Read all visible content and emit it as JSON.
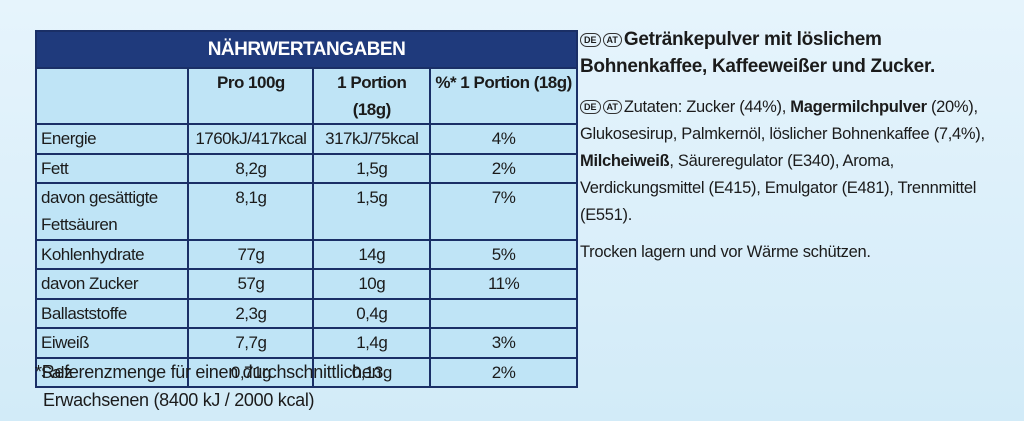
{
  "table": {
    "title": "NÄHRWERTANGABEN",
    "columns": [
      "Pro 100g",
      "1 Portion (18g)",
      "%* 1 Portion (18g)"
    ],
    "rows": [
      [
        "Energie",
        "1760kJ/417kcal",
        "317kJ/75kcal",
        "4%"
      ],
      [
        "Fett",
        "8,2g",
        "1,5g",
        "2%"
      ],
      [
        "davon gesättigte Fettsäuren",
        "8,1g",
        "1,5g",
        "7%"
      ],
      [
        "Kohlenhydrate",
        "77g",
        "14g",
        "5%"
      ],
      [
        "davon Zucker",
        "57g",
        "10g",
        "11%"
      ],
      [
        "Ballaststoffe",
        "2,3g",
        "0,4g"
      ],
      [
        "Eiweiß",
        "7,7g",
        "1,4g",
        "3%"
      ],
      [
        "Salz",
        "0,71g",
        "0,13g",
        "2%"
      ]
    ]
  },
  "footnote": [
    "*Referenzmenge für einen durchschnittlichen",
    "Erwachsenen (8400 kJ / 2000 kcal)"
  ],
  "countries": [
    "DE",
    "AT"
  ],
  "description": "Getränkepulver mit löslichem Bohnenkaffee, Kaffeeweißer und Zucker.",
  "ingredients": [
    {
      "text": "Zutaten: Zucker (44%), ",
      "bold": false
    },
    {
      "text": "Magermilchpulver",
      "bold": true
    },
    {
      "text": " (20%), Glukosesirup, Palmkernöl, löslicher Bohnenkaffee (7,4%), ",
      "bold": false
    },
    {
      "text": "Milcheiweiß",
      "bold": true
    },
    {
      "text": ", Säureregulator (E340), Aroma, Verdickungsmittel (E415), Emulgator (E481), Trennmittel (E551).",
      "bold": false
    }
  ],
  "storage": "Trocken lagern und vor Wärme schützen."
}
